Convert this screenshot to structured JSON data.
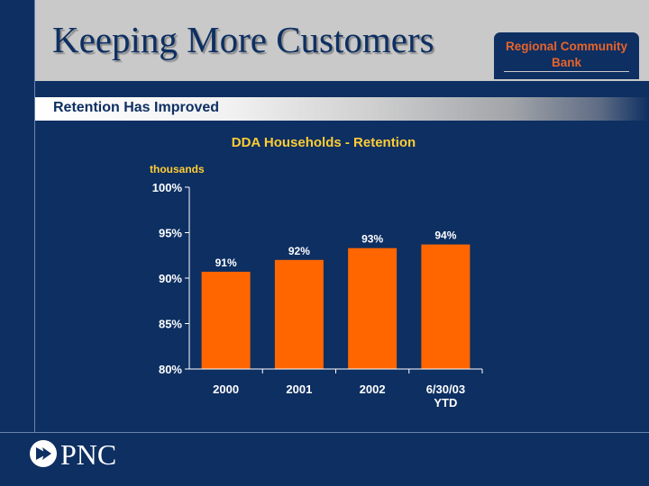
{
  "header": {
    "title": "Keeping More Customers"
  },
  "badge": {
    "text": "Regional Community Bank"
  },
  "section": {
    "subtitle": "Retention Has Improved"
  },
  "logo": {
    "text": "PNC"
  },
  "colors": {
    "navy": "#0d2f62",
    "orange": "#ff6600",
    "gray": "#c9c9c9",
    "chart_title": "#ffcc33"
  },
  "chart_data": {
    "type": "bar",
    "title": "DDA Households - Retention",
    "ylabel": "thousands",
    "xlabel": "",
    "categories": [
      [
        "2000"
      ],
      [
        "2001"
      ],
      [
        "2002"
      ],
      [
        "6/30/03",
        "YTD"
      ]
    ],
    "values": [
      91,
      92,
      93,
      94
    ],
    "plotted_values": [
      90.7,
      92.0,
      93.3,
      93.7
    ],
    "data_labels": [
      "91%",
      "92%",
      "93%",
      "94%"
    ],
    "yticks": [
      "100%",
      "95%",
      "90%",
      "85%",
      "80%"
    ],
    "ylim": [
      80,
      100
    ],
    "grid": false,
    "bar_color": "#ff6600"
  }
}
